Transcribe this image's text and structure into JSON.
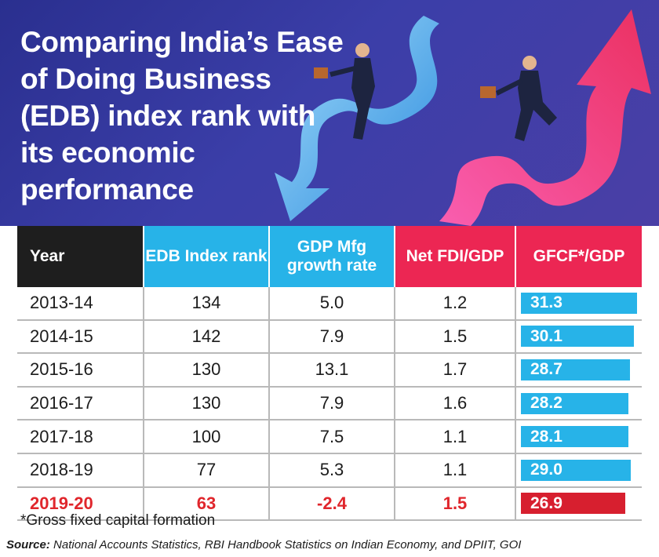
{
  "title": "Comparing India’s Ease of Doing Business (EDB) index rank with its economic performance",
  "colors": {
    "banner": "#3b3ea8",
    "blue_header": "#27b3e8",
    "red_header": "#ec2653",
    "bar_blue": "#27b3e8",
    "bar_red": "#d71f2f",
    "highlight_text": "#e0262c"
  },
  "chart_data": {
    "type": "table",
    "title": "Comparing India’s Ease of Doing Business (EDB) index rank with its economic performance",
    "columns": [
      "Year",
      "EDB Index rank",
      "GDP Mfg growth rate",
      "Net FDI/GDP",
      "GFCF*/GDP"
    ],
    "rows": [
      {
        "year": "2013-14",
        "edb": "134",
        "gdp": "5.0",
        "fdi": "1.2",
        "gfcf": "31.3",
        "gfcf_value": 31.3
      },
      {
        "year": "2014-15",
        "edb": "142",
        "gdp": "7.9",
        "fdi": "1.5",
        "gfcf": "30.1",
        "gfcf_value": 30.1
      },
      {
        "year": "2015-16",
        "edb": "130",
        "gdp": "13.1",
        "fdi": "1.7",
        "gfcf": "28.7",
        "gfcf_value": 28.7
      },
      {
        "year": "2016-17",
        "edb": "130",
        "gdp": "7.9",
        "fdi": "1.6",
        "gfcf": "28.2",
        "gfcf_value": 28.2
      },
      {
        "year": "2017-18",
        "edb": "100",
        "gdp": "7.5",
        "fdi": "1.1",
        "gfcf": "28.1",
        "gfcf_value": 28.1
      },
      {
        "year": "2018-19",
        "edb": "77",
        "gdp": "5.3",
        "fdi": "1.1",
        "gfcf": "29.0",
        "gfcf_value": 29.0
      },
      {
        "year": "2019-20",
        "edb": "63",
        "gdp": "-2.4",
        "fdi": "1.5",
        "gfcf": "26.9",
        "gfcf_value": 26.9,
        "highlight": true
      }
    ],
    "footnote": "*Gross fixed capital formation",
    "source_label": "Source:",
    "source_text": "National Accounts Statistics, RBI Handbook Statistics on Indian Economy, and DPIIT, GOI"
  },
  "illustration": {
    "icons": [
      "down-arrow-icon",
      "up-arrow-icon",
      "businessman-icon"
    ]
  }
}
